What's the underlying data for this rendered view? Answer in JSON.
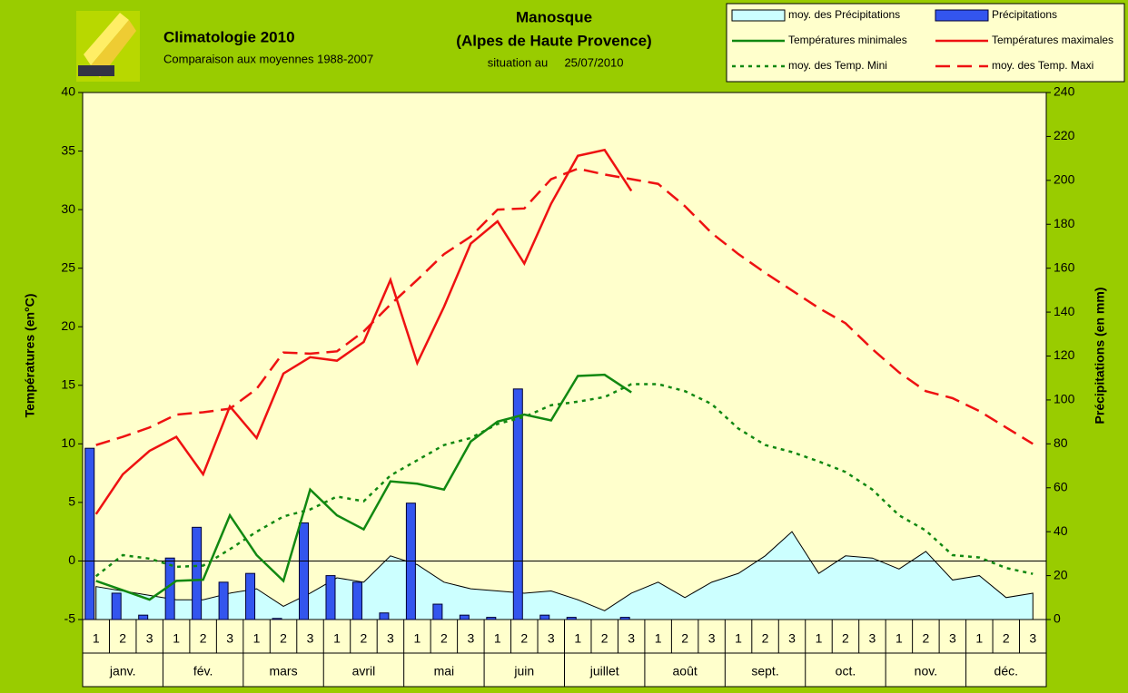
{
  "chart_data": {
    "type": "combo",
    "title": "Climatologie 2010",
    "subtitle": "Comparaison aux moyennes 1988-2007",
    "station": "Manosque",
    "region": "(Alpes de Haute Provence)",
    "situation_label": "situation au",
    "situation_date": "25/07/2010",
    "y_label": "Températures (en°C)",
    "y2_label": "Précipitations (en mm)",
    "categories": [
      "1",
      "2",
      "3",
      "1",
      "2",
      "3",
      "1",
      "2",
      "3",
      "1",
      "2",
      "3",
      "1",
      "2",
      "3",
      "1",
      "2",
      "3",
      "1",
      "2",
      "3",
      "1",
      "2",
      "3",
      "1",
      "2",
      "3",
      "1",
      "2",
      "3",
      "1",
      "2",
      "3",
      "1",
      "2",
      "3"
    ],
    "months": [
      "janv.",
      "fév.",
      "mars",
      "avril",
      "mai",
      "juin",
      "juillet",
      "août",
      "sept.",
      "oct.",
      "nov.",
      "déc."
    ],
    "ylim": [
      -5,
      40
    ],
    "yticks": [
      -5,
      0,
      5,
      10,
      15,
      20,
      25,
      30,
      35,
      40
    ],
    "y2lim": [
      0,
      240
    ],
    "y2ticks": [
      0,
      20,
      40,
      60,
      80,
      100,
      120,
      140,
      160,
      180,
      200,
      220,
      240
    ],
    "series": [
      {
        "name": "moy. des Précipitations",
        "style": "area",
        "axis": "y2",
        "color": "#ccffff",
        "values": [
          15,
          13,
          11,
          9,
          9,
          12,
          14,
          6,
          12,
          19,
          17,
          29,
          25,
          17,
          14,
          13,
          12,
          13,
          9,
          4,
          12,
          17,
          10,
          17,
          21,
          29,
          40,
          21,
          29,
          28,
          23,
          31,
          18,
          20,
          10,
          12
        ]
      },
      {
        "name": "Précipitations",
        "style": "bar",
        "axis": "y2",
        "color": "#3355ee",
        "values": [
          78,
          12,
          2,
          28,
          42,
          17,
          21,
          0.5,
          44,
          20,
          17,
          3,
          53,
          7,
          2,
          1,
          105,
          2,
          1,
          0,
          1,
          null,
          null,
          null,
          null,
          null,
          null,
          null,
          null,
          null,
          null,
          null,
          null,
          null,
          null,
          null
        ]
      },
      {
        "name": "Températures minimales",
        "style": "solid",
        "color": "#118811",
        "values": [
          -1.7,
          -2.5,
          -3.3,
          -1.7,
          -1.6,
          3.9,
          0.5,
          -1.7,
          6.1,
          3.9,
          2.7,
          6.8,
          6.6,
          6.1,
          10.2,
          11.9,
          12.5,
          12.0,
          15.8,
          15.9,
          14.4,
          null,
          null,
          null,
          null,
          null,
          null,
          null,
          null,
          null,
          null,
          null,
          null,
          null,
          null,
          null
        ]
      },
      {
        "name": "Températures maximales",
        "style": "solid",
        "color": "#ee1111",
        "values": [
          4.0,
          7.4,
          9.4,
          10.6,
          7.4,
          13.2,
          10.5,
          16.0,
          17.4,
          17.1,
          18.7,
          24.0,
          16.9,
          21.7,
          27.1,
          29.0,
          25.4,
          30.5,
          34.6,
          35.1,
          31.6,
          null,
          null,
          null,
          null,
          null,
          null,
          null,
          null,
          null,
          null,
          null,
          null,
          null,
          null,
          null
        ]
      },
      {
        "name": "moy. des Temp. Mini",
        "style": "dotted",
        "color": "#118811",
        "values": [
          -1.3,
          0.5,
          0.2,
          -0.5,
          -0.4,
          1.0,
          2.5,
          3.8,
          4.4,
          5.5,
          5.1,
          7.3,
          8.6,
          9.9,
          10.5,
          11.7,
          12.3,
          13.3,
          13.6,
          14.0,
          15.1,
          15.1,
          14.5,
          13.4,
          11.3,
          9.9,
          9.3,
          8.5,
          7.6,
          6.1,
          3.9,
          2.6,
          0.5,
          0.3,
          -0.6,
          -1.1
        ]
      },
      {
        "name": "moy. des Temp. Maxi",
        "style": "dashed",
        "color": "#ee1111",
        "values": [
          9.9,
          10.6,
          11.4,
          12.5,
          12.7,
          13.0,
          14.7,
          17.8,
          17.7,
          17.9,
          19.6,
          21.9,
          24.0,
          26.2,
          27.7,
          30.0,
          30.1,
          32.6,
          33.5,
          33.0,
          32.6,
          32.2,
          30.3,
          28.0,
          26.2,
          24.6,
          23.1,
          21.6,
          20.3,
          18.1,
          16.1,
          14.5,
          13.9,
          12.8,
          11.4,
          10.0
        ]
      }
    ]
  }
}
